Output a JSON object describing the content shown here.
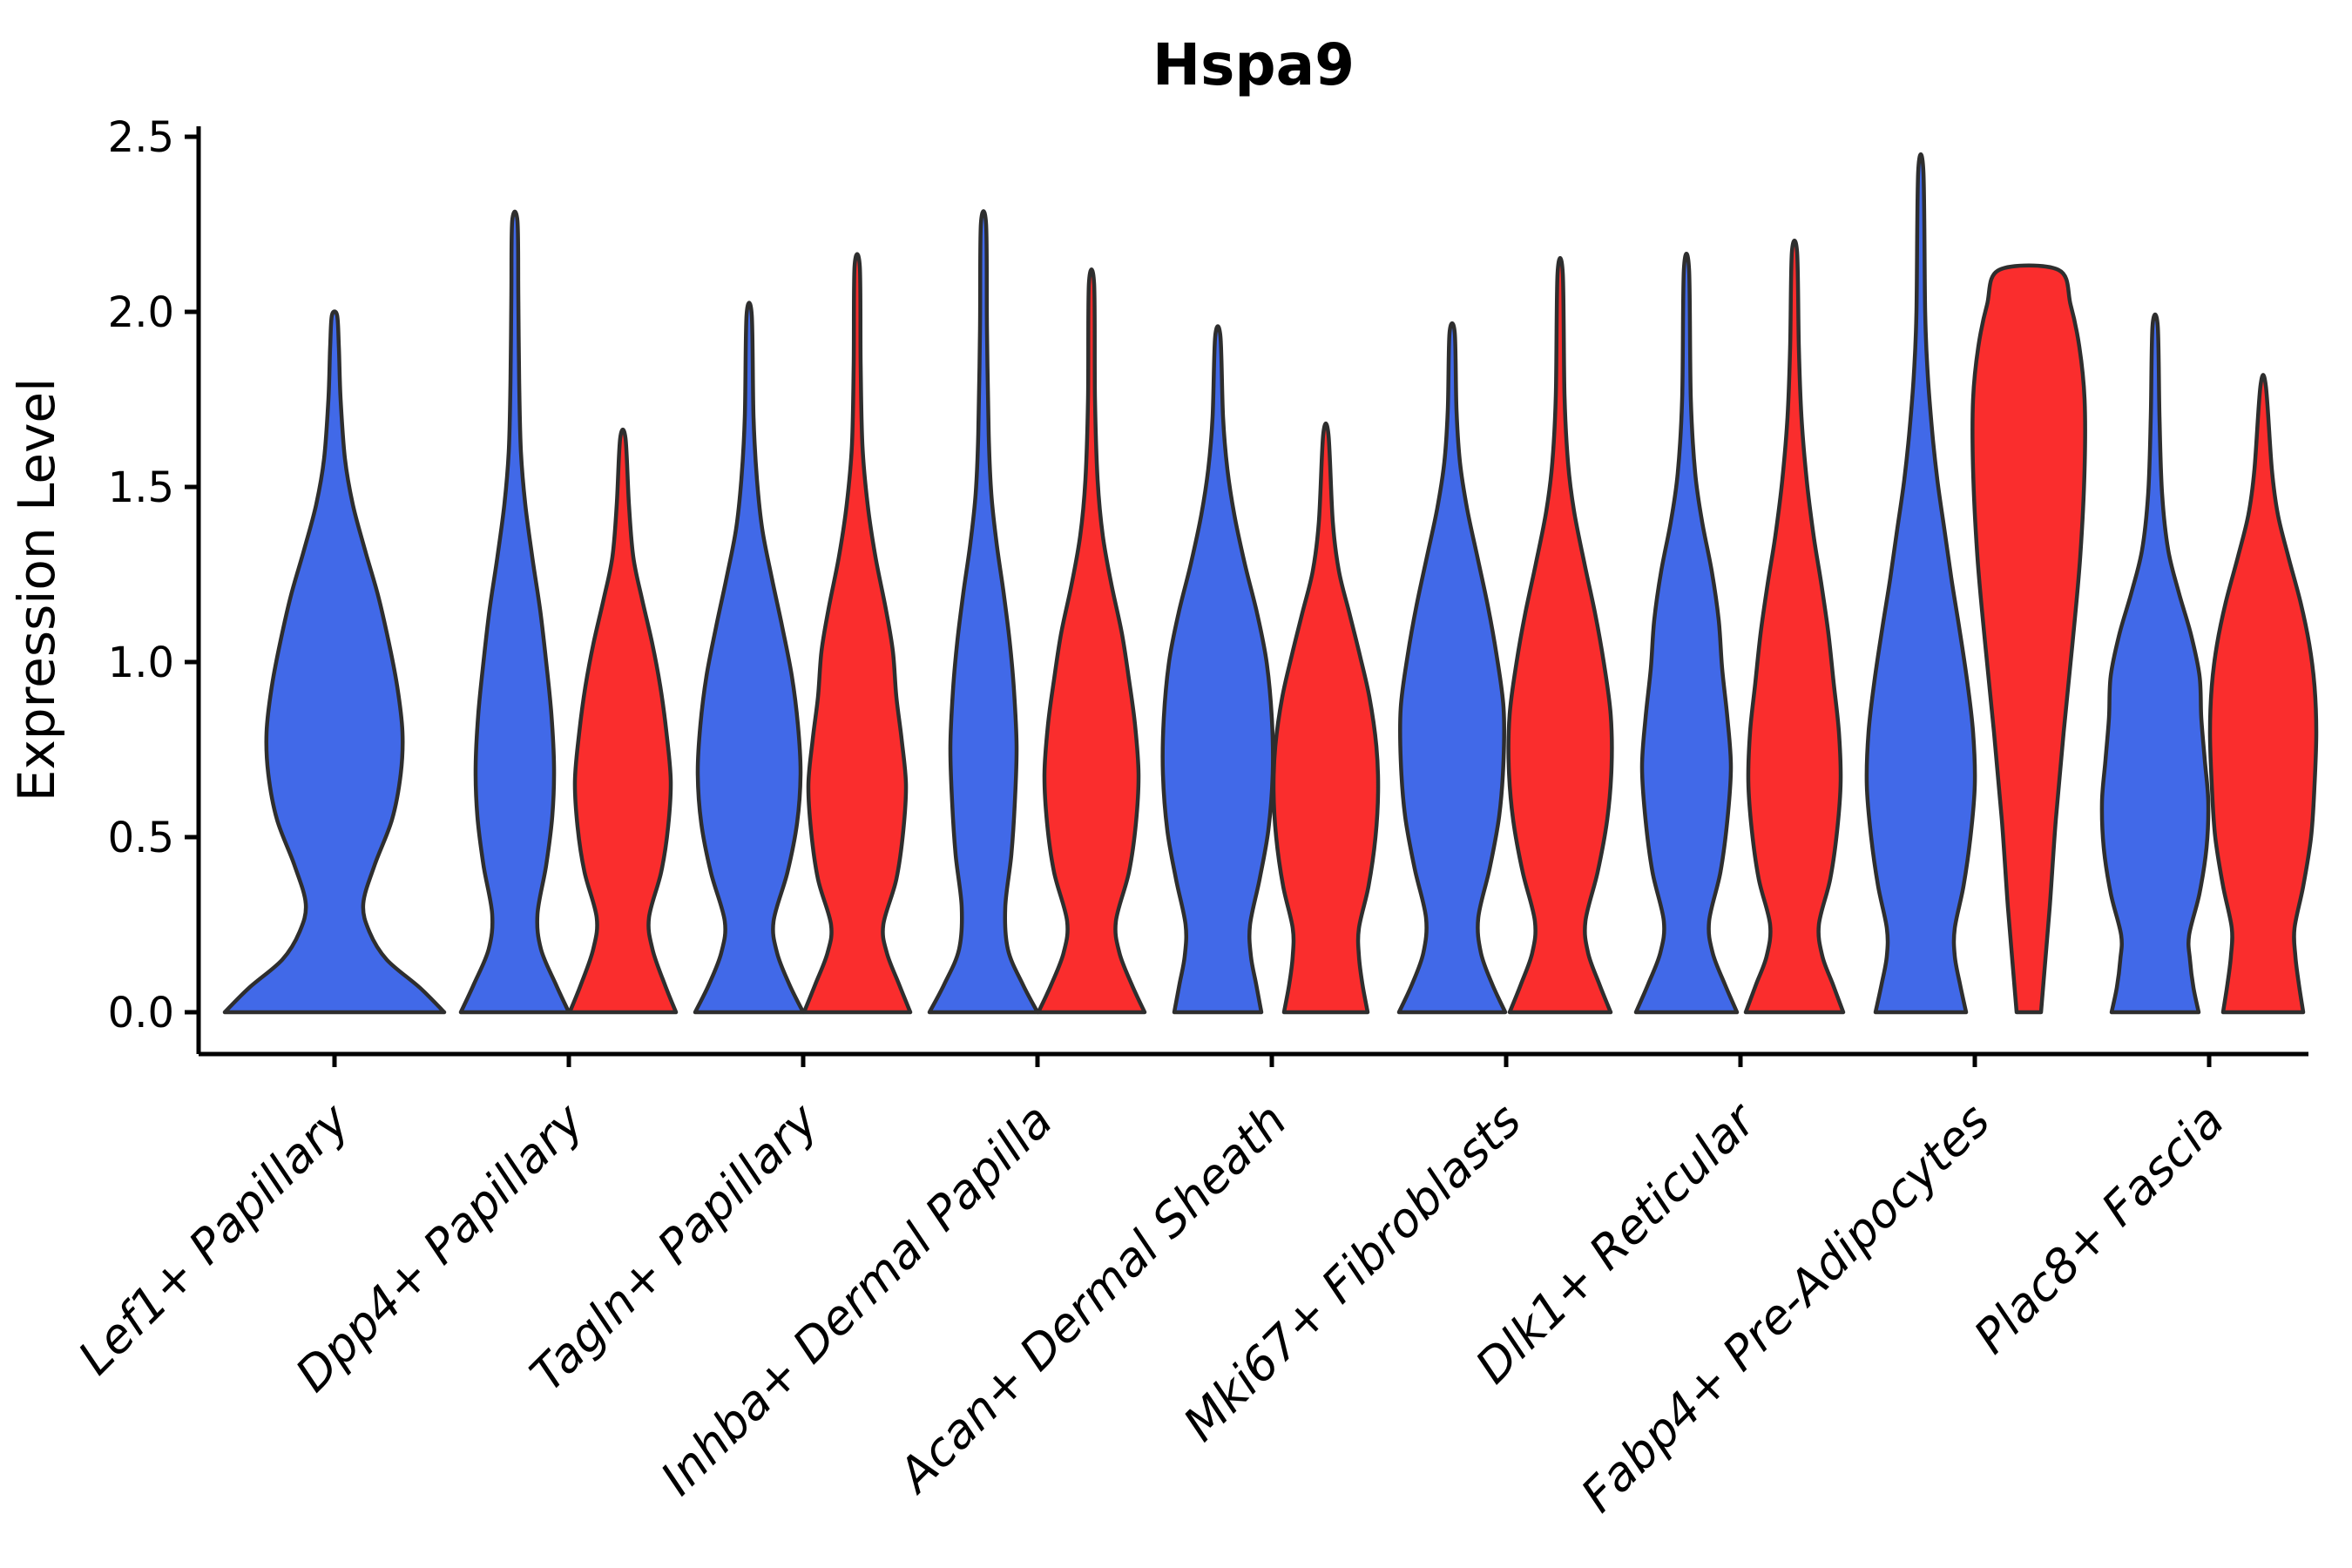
{
  "chart_data": {
    "type": "violin",
    "title": "Hspa9",
    "ylabel": "Expression Level",
    "xlabel": "",
    "ylim": [
      0.0,
      2.5
    ],
    "yticks": [
      {
        "value": 0.0,
        "label": "0.0"
      },
      {
        "value": 0.5,
        "label": "0.5"
      },
      {
        "value": 1.0,
        "label": "1.0"
      },
      {
        "value": 1.5,
        "label": "1.5"
      },
      {
        "value": 2.0,
        "label": "2.0"
      },
      {
        "value": 2.5,
        "label": "2.5"
      }
    ],
    "grid": false,
    "legend": "none",
    "categories": [
      "Lef1+ Papillary",
      "Dpp4+ Papillary",
      "Tagln+ Papillary",
      "Inhba+ Dermal Papilla",
      "Acan+ Dermal Sheath",
      "Mki67+ Fibroblasts",
      "Dlk1+ Reticular",
      "Fabp4+ Pre-Adipocytes",
      "Plac8+ Fascia"
    ],
    "series_colors": {
      "blue": "#4169E8",
      "red": "#FA2D2D"
    },
    "outline_color": "#2E2E2E",
    "violins": [
      {
        "category": "Lef1+ Papillary",
        "color": "blue",
        "side": "center",
        "max_value": 1.99,
        "flat_top": false,
        "profile_v_hw": [
          [
            0,
            126
          ],
          [
            0.07,
            98
          ],
          [
            0.15,
            60
          ],
          [
            0.23,
            40
          ],
          [
            0.31,
            33
          ],
          [
            0.42,
            46
          ],
          [
            0.55,
            66
          ],
          [
            0.68,
            76
          ],
          [
            0.8,
            78
          ],
          [
            0.93,
            72
          ],
          [
            1.06,
            62
          ],
          [
            1.19,
            50
          ],
          [
            1.32,
            35
          ],
          [
            1.45,
            21
          ],
          [
            1.58,
            12
          ],
          [
            1.75,
            7
          ],
          [
            1.9,
            5
          ],
          [
            1.99,
            3
          ]
        ]
      },
      {
        "category": "Dpp4+ Papillary",
        "color": "blue",
        "side": "left",
        "max_value": 2.26,
        "flat_top": false,
        "profile_v_hw": [
          [
            0,
            62
          ],
          [
            0.08,
            47
          ],
          [
            0.18,
            30
          ],
          [
            0.28,
            26
          ],
          [
            0.42,
            36
          ],
          [
            0.56,
            43
          ],
          [
            0.7,
            45
          ],
          [
            0.85,
            42
          ],
          [
            1.0,
            36
          ],
          [
            1.15,
            29
          ],
          [
            1.3,
            20
          ],
          [
            1.45,
            12
          ],
          [
            1.6,
            7
          ],
          [
            1.8,
            5
          ],
          [
            2.05,
            4
          ],
          [
            2.26,
            3
          ]
        ]
      },
      {
        "category": "Dpp4+ Papillary",
        "color": "red",
        "side": "right",
        "max_value": 1.64,
        "flat_top": false,
        "profile_v_hw": [
          [
            0,
            61
          ],
          [
            0.08,
            48
          ],
          [
            0.18,
            34
          ],
          [
            0.27,
            30
          ],
          [
            0.4,
            44
          ],
          [
            0.53,
            52
          ],
          [
            0.66,
            55
          ],
          [
            0.8,
            50
          ],
          [
            0.93,
            43
          ],
          [
            1.05,
            34
          ],
          [
            1.18,
            22
          ],
          [
            1.3,
            12
          ],
          [
            1.45,
            7
          ],
          [
            1.64,
            3
          ]
        ]
      },
      {
        "category": "Tagln+ Papillary",
        "color": "blue",
        "side": "left",
        "max_value": 1.99,
        "flat_top": false,
        "profile_v_hw": [
          [
            0,
            62
          ],
          [
            0.08,
            46
          ],
          [
            0.17,
            32
          ],
          [
            0.26,
            28
          ],
          [
            0.4,
            44
          ],
          [
            0.54,
            55
          ],
          [
            0.68,
            59
          ],
          [
            0.82,
            56
          ],
          [
            0.96,
            49
          ],
          [
            1.1,
            38
          ],
          [
            1.24,
            26
          ],
          [
            1.38,
            15
          ],
          [
            1.52,
            9
          ],
          [
            1.7,
            5
          ],
          [
            1.99,
            3
          ]
        ]
      },
      {
        "category": "Tagln+ Papillary",
        "color": "red",
        "side": "right",
        "max_value": 2.13,
        "flat_top": false,
        "profile_v_hw": [
          [
            0,
            61
          ],
          [
            0.08,
            48
          ],
          [
            0.17,
            34
          ],
          [
            0.25,
            30
          ],
          [
            0.38,
            45
          ],
          [
            0.52,
            53
          ],
          [
            0.65,
            56
          ],
          [
            0.78,
            51
          ],
          [
            0.9,
            45
          ],
          [
            1.03,
            41
          ],
          [
            1.15,
            33
          ],
          [
            1.3,
            21
          ],
          [
            1.45,
            12
          ],
          [
            1.62,
            6
          ],
          [
            1.85,
            4
          ],
          [
            2.13,
            3
          ]
        ]
      },
      {
        "category": "Inhba+ Dermal Papilla",
        "color": "blue",
        "side": "left",
        "max_value": 2.25,
        "flat_top": false,
        "profile_v_hw": [
          [
            0,
            62
          ],
          [
            0.08,
            45
          ],
          [
            0.18,
            28
          ],
          [
            0.3,
            25
          ],
          [
            0.45,
            32
          ],
          [
            0.6,
            36
          ],
          [
            0.76,
            38
          ],
          [
            0.92,
            35
          ],
          [
            1.06,
            30
          ],
          [
            1.2,
            23
          ],
          [
            1.34,
            15
          ],
          [
            1.48,
            9
          ],
          [
            1.65,
            6
          ],
          [
            1.95,
            4
          ],
          [
            2.25,
            3
          ]
        ]
      },
      {
        "category": "Inhba+ Dermal Papilla",
        "color": "red",
        "side": "right",
        "max_value": 2.08,
        "flat_top": false,
        "profile_v_hw": [
          [
            0,
            61
          ],
          [
            0.08,
            46
          ],
          [
            0.17,
            32
          ],
          [
            0.26,
            28
          ],
          [
            0.4,
            43
          ],
          [
            0.54,
            51
          ],
          [
            0.68,
            54
          ],
          [
            0.82,
            50
          ],
          [
            0.95,
            43
          ],
          [
            1.08,
            35
          ],
          [
            1.22,
            23
          ],
          [
            1.36,
            13
          ],
          [
            1.52,
            7
          ],
          [
            1.75,
            4
          ],
          [
            2.08,
            3
          ]
        ]
      },
      {
        "category": "Acan+ Dermal Sheath",
        "color": "blue",
        "side": "left",
        "max_value": 1.93,
        "flat_top": false,
        "profile_v_hw": [
          [
            0,
            50
          ],
          [
            0.08,
            44
          ],
          [
            0.16,
            38
          ],
          [
            0.25,
            37
          ],
          [
            0.38,
            48
          ],
          [
            0.52,
            58
          ],
          [
            0.68,
            63
          ],
          [
            0.84,
            62
          ],
          [
            1.0,
            56
          ],
          [
            1.14,
            45
          ],
          [
            1.28,
            31
          ],
          [
            1.42,
            19
          ],
          [
            1.55,
            11
          ],
          [
            1.7,
            6
          ],
          [
            1.93,
            3
          ]
        ]
      },
      {
        "category": "Acan+ Dermal Sheath",
        "color": "red",
        "side": "right",
        "max_value": 1.65,
        "flat_top": false,
        "profile_v_hw": [
          [
            0,
            48
          ],
          [
            0.08,
            42
          ],
          [
            0.16,
            38
          ],
          [
            0.24,
            38
          ],
          [
            0.36,
            49
          ],
          [
            0.5,
            57
          ],
          [
            0.63,
            60
          ],
          [
            0.76,
            58
          ],
          [
            0.9,
            50
          ],
          [
            1.02,
            39
          ],
          [
            1.14,
            27
          ],
          [
            1.26,
            15
          ],
          [
            1.4,
            8
          ],
          [
            1.65,
            3
          ]
        ]
      },
      {
        "category": "Mki67+ Fibroblasts",
        "color": "blue",
        "side": "left",
        "max_value": 1.94,
        "flat_top": false,
        "profile_v_hw": [
          [
            0,
            61
          ],
          [
            0.08,
            46
          ],
          [
            0.17,
            33
          ],
          [
            0.27,
            30
          ],
          [
            0.41,
            43
          ],
          [
            0.56,
            54
          ],
          [
            0.72,
            59
          ],
          [
            0.87,
            59
          ],
          [
            1.02,
            51
          ],
          [
            1.16,
            41
          ],
          [
            1.3,
            29
          ],
          [
            1.44,
            17
          ],
          [
            1.57,
            9
          ],
          [
            1.72,
            5
          ],
          [
            1.94,
            3
          ]
        ]
      },
      {
        "category": "Mki67+ Fibroblasts",
        "color": "red",
        "side": "right",
        "max_value": 2.11,
        "flat_top": false,
        "profile_v_hw": [
          [
            0,
            58
          ],
          [
            0.08,
            45
          ],
          [
            0.17,
            32
          ],
          [
            0.26,
            29
          ],
          [
            0.4,
            43
          ],
          [
            0.55,
            54
          ],
          [
            0.7,
            59
          ],
          [
            0.85,
            58
          ],
          [
            1.0,
            50
          ],
          [
            1.14,
            40
          ],
          [
            1.28,
            28
          ],
          [
            1.43,
            16
          ],
          [
            1.57,
            9
          ],
          [
            1.76,
            5
          ],
          [
            2.11,
            3
          ]
        ]
      },
      {
        "category": "Dlk1+ Reticular",
        "color": "blue",
        "side": "left",
        "max_value": 2.12,
        "flat_top": false,
        "profile_v_hw": [
          [
            0,
            58
          ],
          [
            0.08,
            44
          ],
          [
            0.17,
            30
          ],
          [
            0.26,
            26
          ],
          [
            0.4,
            39
          ],
          [
            0.55,
            47
          ],
          [
            0.7,
            51
          ],
          [
            0.84,
            47
          ],
          [
            0.98,
            41
          ],
          [
            1.12,
            37
          ],
          [
            1.26,
            29
          ],
          [
            1.4,
            18
          ],
          [
            1.54,
            10
          ],
          [
            1.75,
            5
          ],
          [
            2.12,
            3
          ]
        ]
      },
      {
        "category": "Dlk1+ Reticular",
        "color": "red",
        "side": "right",
        "max_value": 2.17,
        "flat_top": false,
        "profile_v_hw": [
          [
            0,
            56
          ],
          [
            0.08,
            44
          ],
          [
            0.16,
            32
          ],
          [
            0.25,
            28
          ],
          [
            0.38,
            41
          ],
          [
            0.52,
            49
          ],
          [
            0.66,
            53
          ],
          [
            0.8,
            51
          ],
          [
            0.94,
            45
          ],
          [
            1.08,
            39
          ],
          [
            1.22,
            31
          ],
          [
            1.36,
            22
          ],
          [
            1.52,
            14
          ],
          [
            1.7,
            8
          ],
          [
            1.9,
            5
          ],
          [
            2.17,
            3
          ]
        ]
      },
      {
        "category": "Fabp4+ Pre-Adipocytes",
        "color": "blue",
        "side": "left",
        "max_value": 2.4,
        "flat_top": false,
        "profile_v_hw": [
          [
            0,
            52
          ],
          [
            0.08,
            45
          ],
          [
            0.16,
            39
          ],
          [
            0.24,
            39
          ],
          [
            0.36,
            49
          ],
          [
            0.5,
            57
          ],
          [
            0.65,
            62
          ],
          [
            0.8,
            60
          ],
          [
            0.95,
            53
          ],
          [
            1.1,
            44
          ],
          [
            1.24,
            35
          ],
          [
            1.38,
            27
          ],
          [
            1.52,
            19
          ],
          [
            1.66,
            13
          ],
          [
            1.82,
            8
          ],
          [
            2.0,
            5
          ],
          [
            2.4,
            3
          ]
        ]
      },
      {
        "category": "Fabp4+ Pre-Adipocytes",
        "color": "red",
        "side": "right",
        "max_value": 2.12,
        "flat_top": true,
        "profile_v_hw": [
          [
            0,
            14
          ],
          [
            0.12,
            18
          ],
          [
            0.3,
            24
          ],
          [
            0.55,
            31
          ],
          [
            0.8,
            40
          ],
          [
            1.05,
            50
          ],
          [
            1.3,
            59
          ],
          [
            1.55,
            64
          ],
          [
            1.75,
            64
          ],
          [
            1.9,
            58
          ],
          [
            2.02,
            48
          ],
          [
            2.12,
            34
          ]
        ]
      },
      {
        "category": "Plac8+ Fascia",
        "color": "blue",
        "side": "left",
        "max_value": 1.96,
        "flat_top": false,
        "profile_v_hw": [
          [
            0,
            50
          ],
          [
            0.07,
            44
          ],
          [
            0.15,
            40
          ],
          [
            0.22,
            39
          ],
          [
            0.34,
            51
          ],
          [
            0.47,
            59
          ],
          [
            0.6,
            61
          ],
          [
            0.72,
            57
          ],
          [
            0.84,
            53
          ],
          [
            0.96,
            51
          ],
          [
            1.08,
            41
          ],
          [
            1.2,
            27
          ],
          [
            1.32,
            15
          ],
          [
            1.48,
            8
          ],
          [
            1.7,
            5
          ],
          [
            1.96,
            3
          ]
        ]
      },
      {
        "category": "Plac8+ Fascia",
        "color": "red",
        "side": "right",
        "max_value": 1.79,
        "flat_top": false,
        "profile_v_hw": [
          [
            0,
            46
          ],
          [
            0.08,
            41
          ],
          [
            0.16,
            37
          ],
          [
            0.24,
            36
          ],
          [
            0.36,
            46
          ],
          [
            0.5,
            55
          ],
          [
            0.65,
            59
          ],
          [
            0.8,
            61
          ],
          [
            0.93,
            59
          ],
          [
            1.05,
            53
          ],
          [
            1.17,
            43
          ],
          [
            1.3,
            29
          ],
          [
            1.42,
            17
          ],
          [
            1.55,
            10
          ],
          [
            1.79,
            3
          ]
        ]
      }
    ]
  }
}
